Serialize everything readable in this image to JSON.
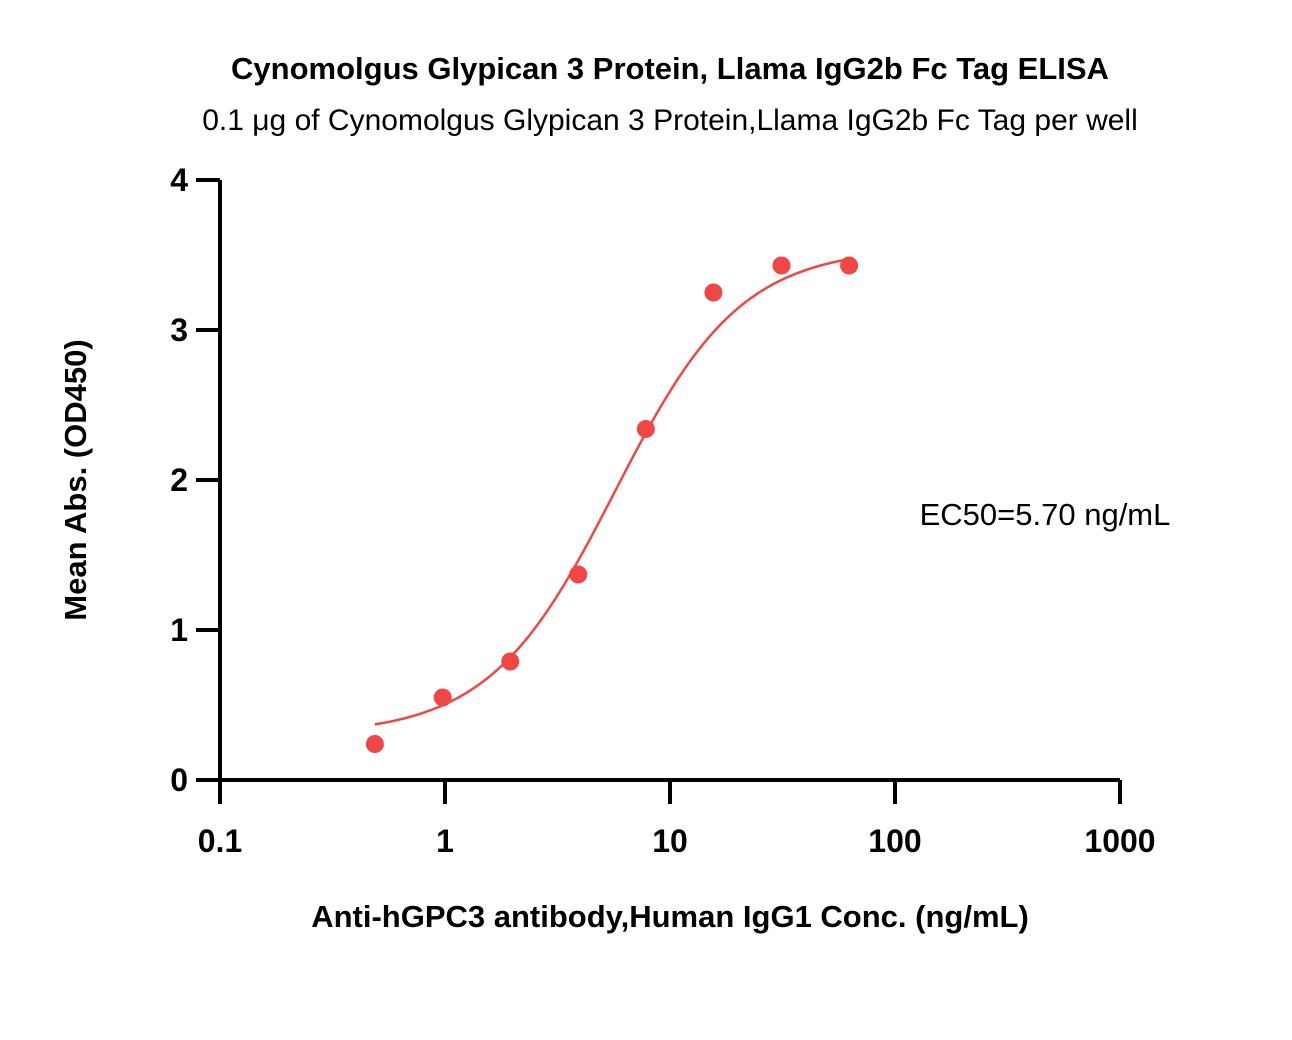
{
  "chart_data": {
    "type": "scatter",
    "title": "Cynomolgus Glypican 3 Protein, Llama IgG2b Fc Tag ELISA",
    "subtitle": "0.1 μg of Cynomolgus Glypican 3 Protein,Llama IgG2b Fc Tag per well",
    "xlabel": "Anti-hGPC3 antibody,Human IgG1 Conc. (ng/mL)",
    "ylabel": "Mean Abs. (OD450)",
    "x_scale": "log",
    "xlim": [
      0.1,
      1000
    ],
    "ylim": [
      0,
      4
    ],
    "x_ticks": [
      0.1,
      1,
      10,
      100,
      1000
    ],
    "x_tick_labels": [
      "0.1",
      "1",
      "10",
      "100",
      "1000"
    ],
    "y_ticks": [
      0,
      1,
      2,
      3,
      4
    ],
    "y_tick_labels": [
      "0",
      "1",
      "2",
      "3",
      "4"
    ],
    "grid": false,
    "legend": "none",
    "series": [
      {
        "x": [
          0.488,
          0.977,
          1.95,
          3.91,
          7.81,
          15.6,
          31.3,
          62.5
        ],
        "y": [
          0.24,
          0.55,
          0.79,
          1.37,
          2.34,
          3.25,
          3.43,
          3.43
        ],
        "color": "#f04646",
        "fit": "4PL",
        "fit_params": {
          "bottom": 0.3,
          "top": 3.55,
          "ec50": 5.7,
          "hill": 1.55
        }
      }
    ],
    "annotations": [
      {
        "text": "EC50=5.70 ng/mL",
        "position": "right-middle"
      }
    ]
  }
}
